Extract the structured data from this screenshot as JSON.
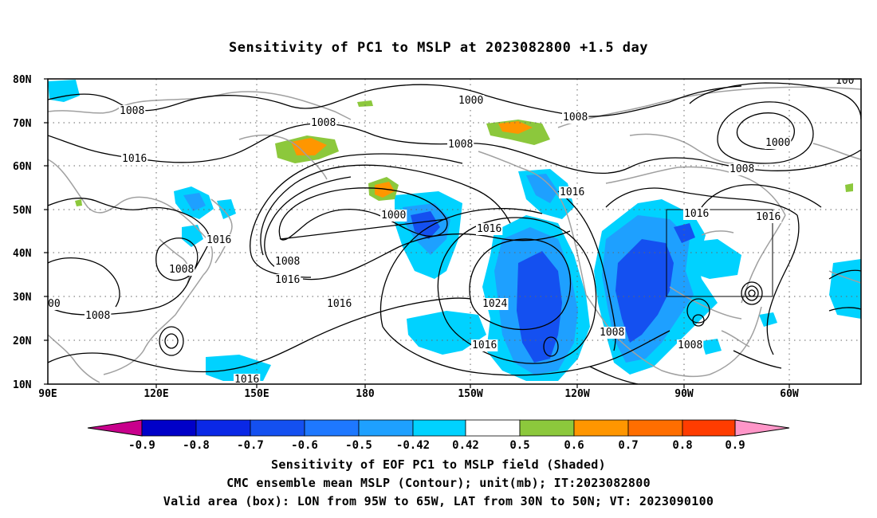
{
  "title": "Sensitivity of PC1 to MSLP at 2023082800 +1.5 day",
  "lat_labels": [
    "80N",
    "70N",
    "60N",
    "50N",
    "40N",
    "30N",
    "20N",
    "10N"
  ],
  "lon_labels": [
    "90E",
    "120E",
    "150E",
    "180",
    "150W",
    "120W",
    "90W",
    "60W"
  ],
  "contour_labels": [
    "1008",
    "1016",
    "1008",
    "1016",
    "1008",
    "1008",
    "1000",
    "1008",
    "1016",
    "1016",
    "1000",
    "1008",
    "1016",
    "1016",
    "1016",
    "1016",
    "1008",
    "1016",
    "1024",
    "1008",
    "1016",
    "1008",
    "1008",
    "1008",
    "1016",
    "1000",
    "00",
    "100"
  ],
  "colorbar": {
    "tick_labels": [
      "-0.9",
      "-0.8",
      "-0.7",
      "-0.6",
      "-0.5",
      "-0.42",
      "0.42",
      "0.5",
      "0.6",
      "0.7",
      "0.8",
      "0.9"
    ],
    "colors": [
      "#c8008c",
      "#0000c8",
      "#0a28e6",
      "#1450f0",
      "#1e78ff",
      "#1ea0ff",
      "#00d2ff",
      "#ffffff",
      "#8cc83c",
      "#ff9600",
      "#ff6e00",
      "#ff3c00",
      "#ff0000",
      "#ff96c8"
    ]
  },
  "shading_colors": {
    "neg_light": "#00d2ff",
    "neg_mid": "#1ea0ff",
    "neg_dark": "#1450f0",
    "pos_green": "#8cc83c",
    "pos_orange": "#ff9600"
  },
  "captions": [
    "Sensitivity of EOF PC1 to MSLP field (Shaded)",
    "CMC ensemble mean MSLP (Contour); unit(mb); IT:2023082800",
    "Valid area (box): LON from 95W to 65W, LAT from 30N to 50N; VT: 2023090100"
  ]
}
